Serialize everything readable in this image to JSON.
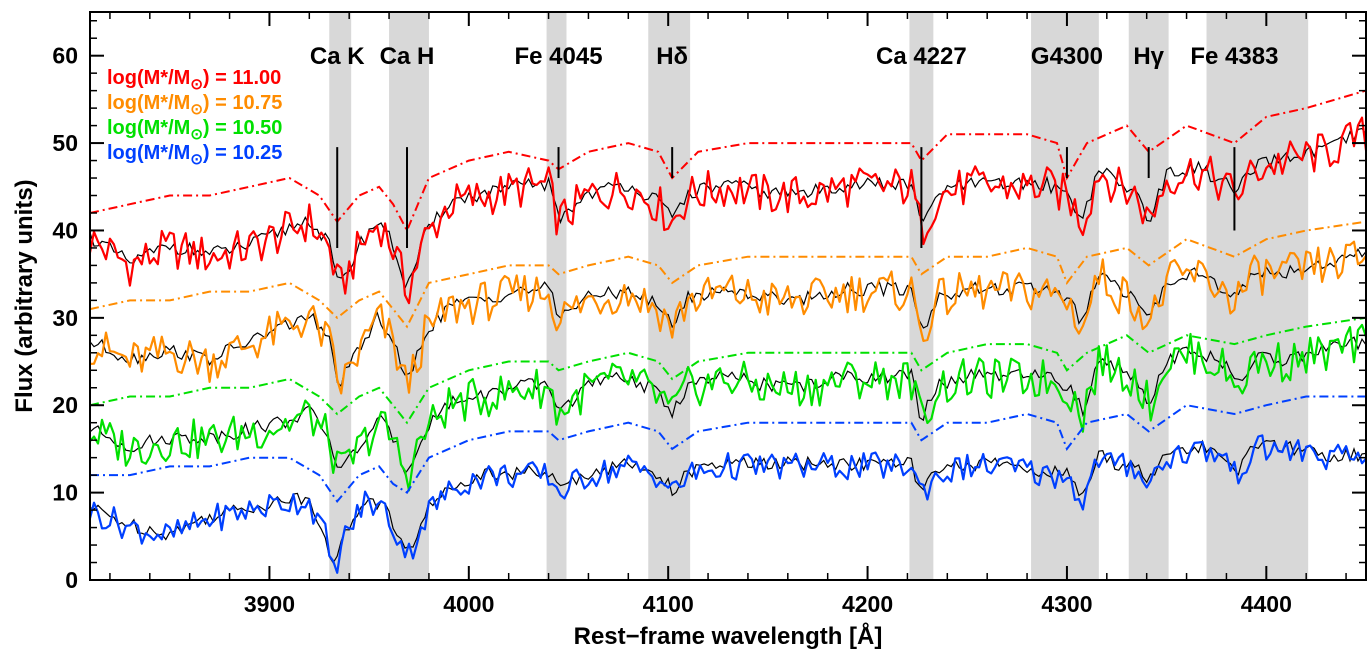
{
  "chart_data": {
    "type": "line",
    "xlabel": "Rest−frame wavelength [Å]",
    "ylabel": "Flux (arbitrary units)",
    "xlim": [
      3810,
      4450
    ],
    "ylim": [
      0,
      65
    ],
    "x_ticks": [
      3900,
      4000,
      4100,
      4200,
      4300,
      4400
    ],
    "y_ticks": [
      0,
      10,
      20,
      30,
      40,
      50,
      60
    ],
    "grid": false,
    "legend_position": "top-left",
    "shaded_bands": [
      {
        "label": "Ca K",
        "x0": 3930,
        "x1": 3941,
        "line_x": 3934,
        "line_y": [
          38,
          50
        ]
      },
      {
        "label": "Ca H",
        "x0": 3960,
        "x1": 3980,
        "line_x": 3969,
        "line_y": [
          38,
          50
        ]
      },
      {
        "label": "Fe 4045",
        "x0": 4039,
        "x1": 4049,
        "line_x": 4045,
        "line_y": [
          46,
          50
        ]
      },
      {
        "label": "Hδ",
        "x0": 4090,
        "x1": 4111,
        "line_x": 4102,
        "line_y": [
          46,
          50
        ]
      },
      {
        "label": "Ca 4227",
        "x0": 4221,
        "x1": 4233,
        "line_x": 4227,
        "line_y": [
          38,
          50
        ]
      },
      {
        "label": "G4300",
        "x0": 4282,
        "x1": 4316,
        "line_x": 4300,
        "line_y": [
          46,
          50
        ]
      },
      {
        "label": "Hγ",
        "x0": 4331,
        "x1": 4351,
        "line_x": 4341,
        "line_y": [
          46,
          50
        ]
      },
      {
        "label": "Fe 4383",
        "x0": 4370,
        "x1": 4421,
        "line_x": 4384,
        "line_y": [
          40,
          50
        ]
      }
    ],
    "colors": {
      "red": "#ff0000",
      "orange": "#ff8c00",
      "green": "#00e000",
      "blue": "#0040ff",
      "model": "#000000",
      "band": "#d8d8d8"
    },
    "series": [
      {
        "name": "log(M*/M⊙) = 11.00",
        "color": "#ff0000",
        "legend": {
          "prefix": "log(M*/M",
          "sub": "⊙",
          "suffix": ") = 11.00"
        },
        "x": [
          3810,
          3830,
          3850,
          3870,
          3890,
          3910,
          3920,
          3930,
          3935,
          3945,
          3955,
          3962,
          3969,
          3978,
          3990,
          4010,
          4030,
          4040,
          4045,
          4060,
          4080,
          4095,
          4102,
          4110,
          4130,
          4150,
          4170,
          4190,
          4210,
          4222,
          4227,
          4235,
          4250,
          4270,
          4290,
          4300,
          4308,
          4316,
          4325,
          4335,
          4341,
          4350,
          4365,
          4380,
          4384,
          4395,
          4410,
          4430,
          4450
        ],
        "y": [
          39,
          36,
          38,
          37,
          38,
          40,
          41,
          38,
          33,
          38,
          41,
          38,
          33,
          39,
          43,
          44,
          45,
          45,
          41,
          44,
          45,
          43,
          41,
          44,
          45,
          44,
          44,
          45,
          45,
          45,
          40,
          44,
          45,
          45,
          45,
          44,
          41,
          47,
          45,
          44,
          41,
          46,
          47,
          45,
          44,
          47,
          48,
          49,
          51
        ],
        "dash_x": [
          3810,
          3830,
          3850,
          3870,
          3890,
          3910,
          3925,
          3934,
          3945,
          3955,
          3962,
          3969,
          3980,
          4000,
          4020,
          4040,
          4045,
          4060,
          4080,
          4095,
          4102,
          4115,
          4140,
          4170,
          4200,
          4222,
          4227,
          4240,
          4260,
          4280,
          4295,
          4300,
          4310,
          4330,
          4341,
          4360,
          4384,
          4400,
          4420,
          4450
        ],
        "dash_y": [
          42,
          43,
          44,
          44,
          45,
          46,
          44,
          41,
          44,
          45,
          43,
          40,
          46,
          48,
          49,
          48,
          47,
          49,
          50,
          49,
          46,
          49,
          50,
          50,
          50,
          50,
          48,
          51,
          51,
          51,
          50,
          46,
          50,
          52,
          49,
          52,
          50,
          53,
          54,
          56
        ]
      },
      {
        "name": "log(M*/M⊙) = 10.75",
        "color": "#ff8c00",
        "legend": {
          "prefix": "log(M*/M",
          "sub": "⊙",
          "suffix": ") = 10.75"
        },
        "x": [
          3810,
          3830,
          3850,
          3870,
          3890,
          3910,
          3920,
          3930,
          3935,
          3945,
          3955,
          3962,
          3969,
          3978,
          3990,
          4010,
          4030,
          4040,
          4045,
          4060,
          4080,
          4095,
          4102,
          4110,
          4130,
          4150,
          4170,
          4190,
          4210,
          4222,
          4227,
          4235,
          4250,
          4270,
          4290,
          4300,
          4308,
          4316,
          4325,
          4335,
          4341,
          4350,
          4365,
          4380,
          4384,
          4395,
          4410,
          4430,
          4450
        ],
        "y": [
          27,
          25,
          26,
          25,
          27,
          29,
          30,
          27,
          22,
          26,
          30,
          27,
          22,
          28,
          31,
          32,
          33,
          33,
          30,
          32,
          33,
          31,
          29,
          32,
          33,
          32,
          32,
          33,
          33,
          33,
          28,
          32,
          33,
          33,
          33,
          32,
          29,
          35,
          33,
          32,
          29,
          34,
          35,
          33,
          32,
          35,
          35,
          36,
          37
        ],
        "dash_x": [
          3810,
          3830,
          3850,
          3870,
          3890,
          3910,
          3925,
          3934,
          3945,
          3955,
          3962,
          3969,
          3980,
          4000,
          4020,
          4040,
          4045,
          4060,
          4080,
          4095,
          4102,
          4115,
          4140,
          4170,
          4200,
          4222,
          4227,
          4240,
          4260,
          4280,
          4295,
          4300,
          4310,
          4330,
          4341,
          4360,
          4384,
          4400,
          4420,
          4450
        ],
        "dash_y": [
          31,
          32,
          32,
          33,
          33,
          34,
          32,
          30,
          32,
          33,
          31,
          29,
          34,
          35,
          36,
          36,
          35,
          36,
          37,
          36,
          34,
          36,
          37,
          37,
          37,
          37,
          35,
          37,
          37,
          38,
          37,
          34,
          37,
          38,
          36,
          39,
          37,
          39,
          40,
          41
        ]
      },
      {
        "name": "log(M*/M⊙) = 10.50",
        "color": "#00e000",
        "legend": {
          "prefix": "log(M*/M",
          "sub": "⊙",
          "suffix": ") = 10.50"
        },
        "x": [
          3810,
          3830,
          3850,
          3870,
          3890,
          3910,
          3920,
          3930,
          3935,
          3945,
          3955,
          3962,
          3969,
          3978,
          3990,
          4010,
          4030,
          4040,
          4045,
          4060,
          4080,
          4095,
          4102,
          4110,
          4130,
          4150,
          4170,
          4190,
          4210,
          4222,
          4227,
          4235,
          4250,
          4270,
          4290,
          4300,
          4308,
          4316,
          4325,
          4335,
          4341,
          4350,
          4365,
          4380,
          4384,
          4395,
          4410,
          4430,
          4450
        ],
        "y": [
          17,
          15,
          16,
          16,
          17,
          18,
          19,
          16,
          12,
          15,
          18,
          16,
          12,
          17,
          20,
          21,
          22,
          22,
          19,
          22,
          23,
          21,
          19,
          22,
          23,
          22,
          22,
          23,
          23,
          23,
          18,
          22,
          23,
          23,
          23,
          22,
          19,
          25,
          24,
          23,
          20,
          25,
          26,
          24,
          22,
          25,
          25,
          26,
          27
        ],
        "dash_x": [
          3810,
          3830,
          3850,
          3870,
          3890,
          3910,
          3925,
          3934,
          3945,
          3955,
          3962,
          3969,
          3980,
          4000,
          4020,
          4040,
          4045,
          4060,
          4080,
          4095,
          4102,
          4115,
          4140,
          4170,
          4200,
          4222,
          4227,
          4240,
          4260,
          4280,
          4295,
          4300,
          4310,
          4330,
          4341,
          4360,
          4384,
          4400,
          4420,
          4450
        ],
        "dash_y": [
          20,
          21,
          21,
          22,
          22,
          23,
          21,
          19,
          21,
          22,
          20,
          18,
          22,
          24,
          25,
          25,
          24,
          25,
          26,
          25,
          23,
          25,
          26,
          26,
          26,
          26,
          24,
          26,
          27,
          27,
          26,
          24,
          26,
          28,
          26,
          28,
          27,
          28,
          29,
          30
        ]
      },
      {
        "name": "log(M*/M⊙) = 10.25",
        "color": "#0040ff",
        "legend": {
          "prefix": "log(M*/M",
          "sub": "⊙",
          "suffix": ") = 10.25"
        },
        "x": [
          3810,
          3830,
          3850,
          3870,
          3890,
          3910,
          3920,
          3928,
          3932,
          3938,
          3948,
          3958,
          3964,
          3970,
          3980,
          3995,
          4010,
          4030,
          4040,
          4045,
          4060,
          4080,
          4095,
          4102,
          4110,
          4130,
          4150,
          4170,
          4190,
          4210,
          4222,
          4227,
          4235,
          4250,
          4270,
          4290,
          4300,
          4308,
          4316,
          4325,
          4335,
          4341,
          4350,
          4365,
          4380,
          4384,
          4395,
          4410,
          4430,
          4450
        ],
        "y": [
          8,
          6,
          5,
          7,
          8,
          9,
          9,
          5,
          1,
          5,
          9,
          8,
          5,
          3,
          8,
          11,
          12,
          12,
          12,
          10,
          12,
          13,
          12,
          10,
          12,
          13,
          13,
          13,
          13,
          13,
          13,
          10,
          12,
          13,
          13,
          12,
          12,
          9,
          14,
          13,
          13,
          11,
          14,
          15,
          14,
          12,
          15,
          15,
          14,
          14
        ],
        "dash_x": [
          3810,
          3830,
          3850,
          3870,
          3890,
          3910,
          3925,
          3934,
          3945,
          3955,
          3962,
          3969,
          3980,
          4000,
          4020,
          4040,
          4045,
          4060,
          4080,
          4095,
          4102,
          4115,
          4140,
          4170,
          4200,
          4222,
          4227,
          4240,
          4260,
          4280,
          4295,
          4300,
          4310,
          4330,
          4341,
          4360,
          4384,
          4400,
          4420,
          4450
        ],
        "dash_y": [
          12,
          12,
          13,
          13,
          14,
          14,
          12,
          9,
          12,
          13,
          11,
          10,
          14,
          16,
          17,
          17,
          16,
          17,
          18,
          17,
          15,
          17,
          18,
          18,
          18,
          18,
          16,
          18,
          18,
          19,
          18,
          15,
          18,
          19,
          17,
          20,
          19,
          20,
          21,
          21
        ]
      }
    ]
  }
}
